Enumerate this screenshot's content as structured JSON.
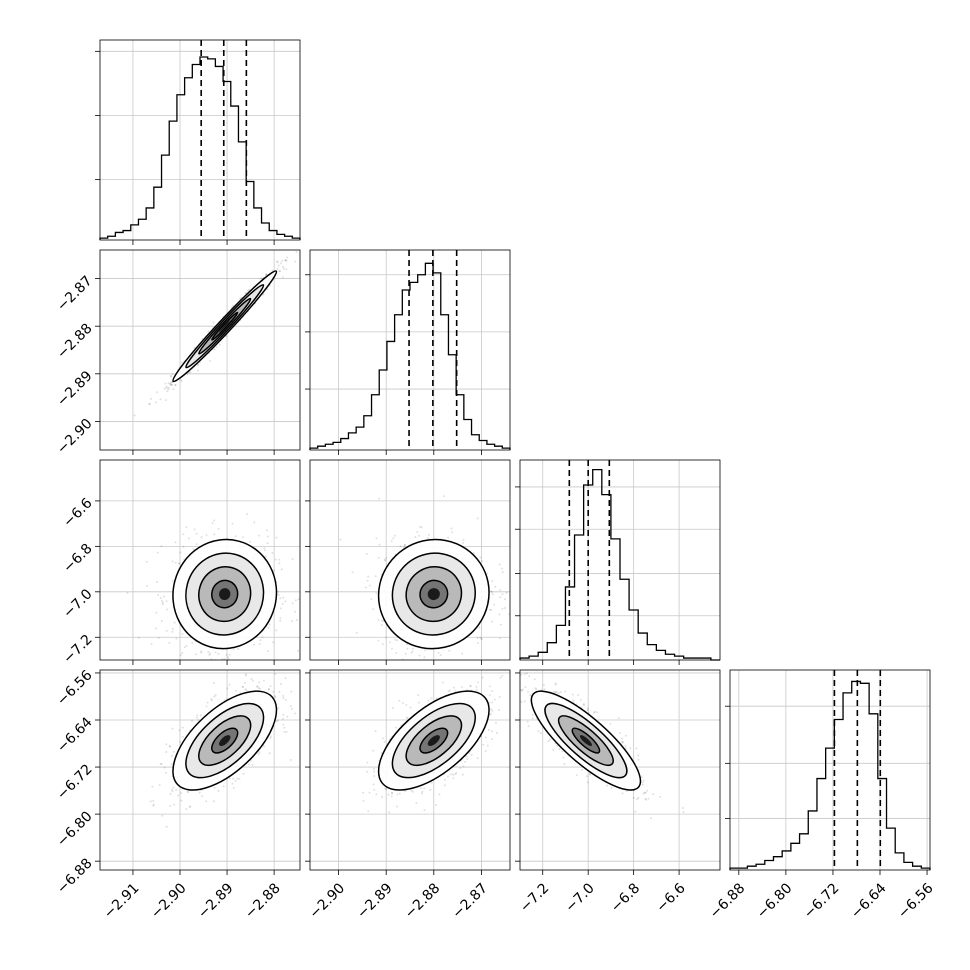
{
  "chart_data": {
    "type": "corner",
    "grid": true,
    "parameters": [
      {
        "range": [
          -2.917,
          -2.8745
        ],
        "ticks": [
          {
            "value": -2.91,
            "label": "−2.91"
          },
          {
            "value": -2.9,
            "label": "−2.90"
          },
          {
            "value": -2.89,
            "label": "−2.89"
          },
          {
            "value": -2.88,
            "label": "−2.88"
          }
        ],
        "quantiles": [
          -2.8955,
          -2.8907,
          -2.8859
        ],
        "histogram": [
          0.01,
          0.02,
          0.04,
          0.05,
          0.08,
          0.11,
          0.17,
          0.28,
          0.45,
          0.63,
          0.77,
          0.86,
          0.93,
          0.97,
          0.96,
          0.92,
          0.84,
          0.71,
          0.52,
          0.31,
          0.17,
          0.09,
          0.05,
          0.03,
          0.02,
          0.01
        ],
        "hist_ymax": 1.06,
        "hist_ticks": [
          0.32,
          0.66,
          1.0
        ]
      },
      {
        "range": [
          -2.906,
          -2.864
        ],
        "ticks": [
          {
            "value": -2.9,
            "label": "−2.90"
          },
          {
            "value": -2.89,
            "label": "−2.89"
          },
          {
            "value": -2.88,
            "label": "−2.88"
          },
          {
            "value": -2.87,
            "label": "−2.87"
          }
        ],
        "quantiles": [
          -2.8852,
          -2.8802,
          -2.8752
        ],
        "histogram": [
          0.01,
          0.02,
          0.03,
          0.04,
          0.06,
          0.09,
          0.12,
          0.18,
          0.29,
          0.42,
          0.57,
          0.71,
          0.84,
          0.88,
          0.92,
          0.98,
          0.93,
          0.71,
          0.5,
          0.29,
          0.16,
          0.08,
          0.05,
          0.03,
          0.02,
          0.01
        ],
        "hist_ymax": 1.05,
        "hist_ticks": [
          0.32,
          0.62,
          0.92
        ]
      },
      {
        "range": [
          -7.3,
          -6.42
        ],
        "ticks": [
          {
            "value": -7.2,
            "label": "−7.2"
          },
          {
            "value": -7.0,
            "label": "−7.0"
          },
          {
            "value": -6.8,
            "label": "−6.8"
          },
          {
            "value": -6.6,
            "label": "−6.6"
          }
        ],
        "quantiles": [
          -7.083,
          -7.0,
          -6.907
        ],
        "histogram": [
          0.01,
          0.02,
          0.04,
          0.09,
          0.18,
          0.38,
          0.65,
          0.91,
          0.99,
          0.86,
          0.63,
          0.42,
          0.26,
          0.14,
          0.08,
          0.05,
          0.03,
          0.02,
          0.01,
          0.01,
          0.01,
          0.0
        ],
        "hist_ymax": 1.04,
        "hist_ticks": [
          0.23,
          0.45,
          0.68,
          0.9
        ]
      },
      {
        "range": [
          -6.895,
          -6.555
        ],
        "ticks": [
          {
            "value": -6.88,
            "label": "−6.88"
          },
          {
            "value": -6.8,
            "label": "−6.80"
          },
          {
            "value": -6.72,
            "label": "−6.72"
          },
          {
            "value": -6.64,
            "label": "−6.64"
          },
          {
            "value": -6.56,
            "label": "−6.56"
          }
        ],
        "quantiles": [
          -6.7175,
          -6.6785,
          -6.6395
        ],
        "histogram": [
          0.01,
          0.01,
          0.02,
          0.03,
          0.05,
          0.07,
          0.1,
          0.14,
          0.19,
          0.31,
          0.48,
          0.64,
          0.79,
          0.93,
          0.99,
          0.98,
          0.82,
          0.48,
          0.22,
          0.09,
          0.04,
          0.02,
          0.01
        ],
        "hist_ymax": 1.05,
        "hist_ticks": [
          0.27,
          0.56,
          0.86
        ]
      }
    ],
    "pairs": [
      {
        "col": 0,
        "row": 1,
        "mean": [
          -2.8905,
          -2.88
        ],
        "sd": [
          0.0055,
          0.0058
        ],
        "corr": 0.985
      },
      {
        "col": 0,
        "row": 2,
        "mean": [
          -2.8905,
          -7.01
        ],
        "sd": [
          0.0055,
          0.12
        ],
        "corr": 0.03
      },
      {
        "col": 1,
        "row": 2,
        "mean": [
          -2.88,
          -7.01
        ],
        "sd": [
          0.0058,
          0.12
        ],
        "corr": 0.03
      },
      {
        "col": 0,
        "row": 3,
        "mean": [
          -2.8905,
          -6.675
        ],
        "sd": [
          0.0055,
          0.042
        ],
        "corr": 0.62
      },
      {
        "col": 1,
        "row": 3,
        "mean": [
          -2.88,
          -6.675
        ],
        "sd": [
          0.0058,
          0.042
        ],
        "corr": 0.62
      },
      {
        "col": 2,
        "row": 3,
        "mean": [
          -7.01,
          -6.675
        ],
        "sd": [
          0.12,
          0.042
        ],
        "corr": -0.82
      }
    ],
    "contour_levels_sigma": [
      0.5,
      1.0,
      1.5,
      2.0
    ]
  }
}
